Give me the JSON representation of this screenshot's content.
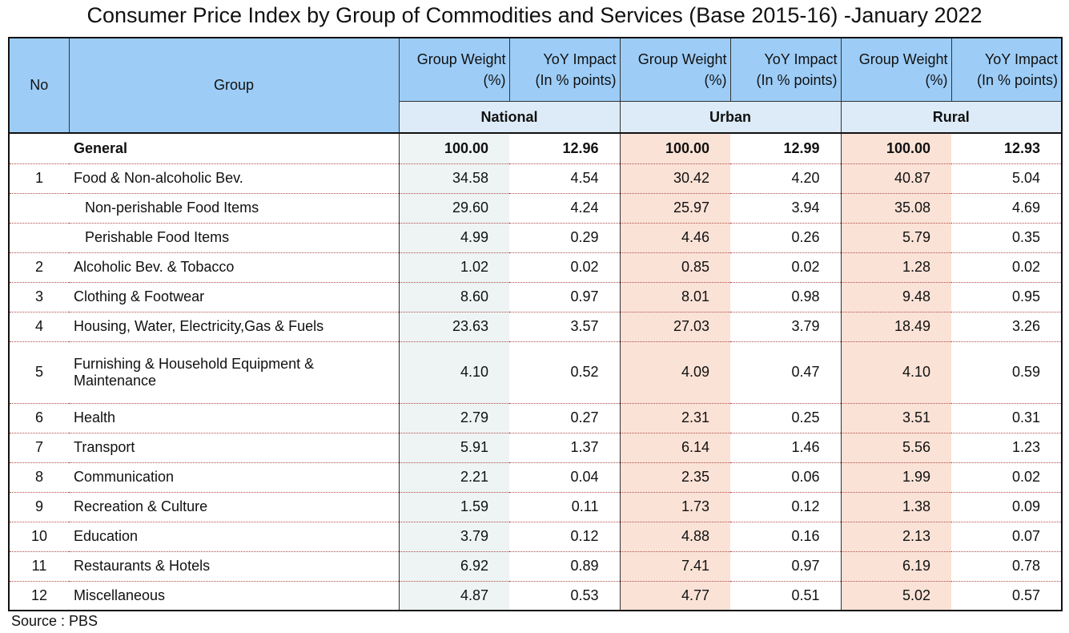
{
  "title": "Consumer Price Index by Group of Commodities and Services (Base 2015-16) -January 2022",
  "header": {
    "no": "No",
    "group": "Group",
    "weight_line1": "Group Weight",
    "weight_line2": "(%)",
    "impact_line1": "YoY Impact",
    "impact_line2": "(In % points)",
    "regions": [
      "National",
      "Urban",
      "Rural"
    ]
  },
  "rows": [
    {
      "no": "",
      "group": "General",
      "nat_w": "100.00",
      "nat_i": "12.96",
      "urb_w": "100.00",
      "urb_i": "12.99",
      "rur_w": "100.00",
      "rur_i": "12.93"
    },
    {
      "no": "1",
      "group": "Food & Non-alcoholic Bev.",
      "nat_w": "34.58",
      "nat_i": "4.54",
      "urb_w": "30.42",
      "urb_i": "4.20",
      "rur_w": "40.87",
      "rur_i": "5.04"
    },
    {
      "no": "",
      "group": "Non-perishable Food Items",
      "nat_w": "29.60",
      "nat_i": "4.24",
      "urb_w": "25.97",
      "urb_i": "3.94",
      "rur_w": "35.08",
      "rur_i": "4.69"
    },
    {
      "no": "",
      "group": "Perishable Food Items",
      "nat_w": "4.99",
      "nat_i": "0.29",
      "urb_w": "4.46",
      "urb_i": "0.26",
      "rur_w": "5.79",
      "rur_i": "0.35"
    },
    {
      "no": "2",
      "group": "Alcoholic Bev. & Tobacco",
      "nat_w": "1.02",
      "nat_i": "0.02",
      "urb_w": "0.85",
      "urb_i": "0.02",
      "rur_w": "1.28",
      "rur_i": "0.02"
    },
    {
      "no": "3",
      "group": "Clothing & Footwear",
      "nat_w": "8.60",
      "nat_i": "0.97",
      "urb_w": "8.01",
      "urb_i": "0.98",
      "rur_w": "9.48",
      "rur_i": "0.95"
    },
    {
      "no": "4",
      "group": "Housing, Water, Electricity,Gas & Fuels",
      "nat_w": "23.63",
      "nat_i": "3.57",
      "urb_w": "27.03",
      "urb_i": "3.79",
      "rur_w": "18.49",
      "rur_i": "3.26"
    },
    {
      "no": "5",
      "group": "Furnishing & Household Equipment & Maintenance",
      "nat_w": "4.10",
      "nat_i": "0.52",
      "urb_w": "4.09",
      "urb_i": "0.47",
      "rur_w": "4.10",
      "rur_i": "0.59"
    },
    {
      "no": "6",
      "group": "Health",
      "nat_w": "2.79",
      "nat_i": "0.27",
      "urb_w": "2.31",
      "urb_i": "0.25",
      "rur_w": "3.51",
      "rur_i": "0.31"
    },
    {
      "no": "7",
      "group": "Transport",
      "nat_w": "5.91",
      "nat_i": "1.37",
      "urb_w": "6.14",
      "urb_i": "1.46",
      "rur_w": "5.56",
      "rur_i": "1.23"
    },
    {
      "no": "8",
      "group": "Communication",
      "nat_w": "2.21",
      "nat_i": "0.04",
      "urb_w": "2.35",
      "urb_i": "0.06",
      "rur_w": "1.99",
      "rur_i": "0.02"
    },
    {
      "no": "9",
      "group": "Recreation & Culture",
      "nat_w": "1.59",
      "nat_i": "0.11",
      "urb_w": "1.73",
      "urb_i": "0.12",
      "rur_w": "1.38",
      "rur_i": "0.09"
    },
    {
      "no": "10",
      "group": "Education",
      "nat_w": "3.79",
      "nat_i": "0.12",
      "urb_w": "4.88",
      "urb_i": "0.16",
      "rur_w": "2.13",
      "rur_i": "0.07"
    },
    {
      "no": "11",
      "group": "Restaurants & Hotels",
      "nat_w": "6.92",
      "nat_i": "0.89",
      "urb_w": "7.41",
      "urb_i": "0.97",
      "rur_w": "6.19",
      "rur_i": "0.78"
    },
    {
      "no": "12",
      "group": "Miscellaneous",
      "nat_w": "4.87",
      "nat_i": "0.53",
      "urb_w": "4.77",
      "urb_i": "0.51",
      "rur_w": "5.02",
      "rur_i": "0.57"
    }
  ],
  "source": "Source : PBS"
}
